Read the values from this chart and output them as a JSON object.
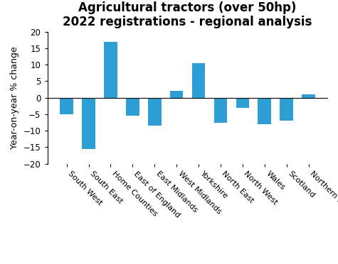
{
  "title_line1": "Agricultural tractors (over 50hp)",
  "title_line2": "2022 registrations - regional analysis",
  "ylabel": "Year-on-year % change",
  "categories": [
    "South West",
    "South East",
    "Home Counties",
    "East of England",
    "East Midlands",
    "West Midlands",
    "Yorkshire",
    "North East",
    "North West",
    "Wales",
    "Scotland",
    "Northern Ireland"
  ],
  "values": [
    -5.0,
    -15.5,
    17.0,
    -5.5,
    -8.5,
    2.0,
    10.5,
    -7.5,
    -3.0,
    -8.0,
    -7.0,
    1.0
  ],
  "bar_color": "#2e9fd4",
  "ylim": [
    -20,
    20
  ],
  "yticks": [
    -20,
    -15,
    -10,
    -5,
    0,
    5,
    10,
    15,
    20
  ],
  "title_fontsize": 12,
  "ylabel_fontsize": 9,
  "tick_fontsize": 8.5,
  "xtick_fontsize": 8,
  "background_color": "#ffffff"
}
